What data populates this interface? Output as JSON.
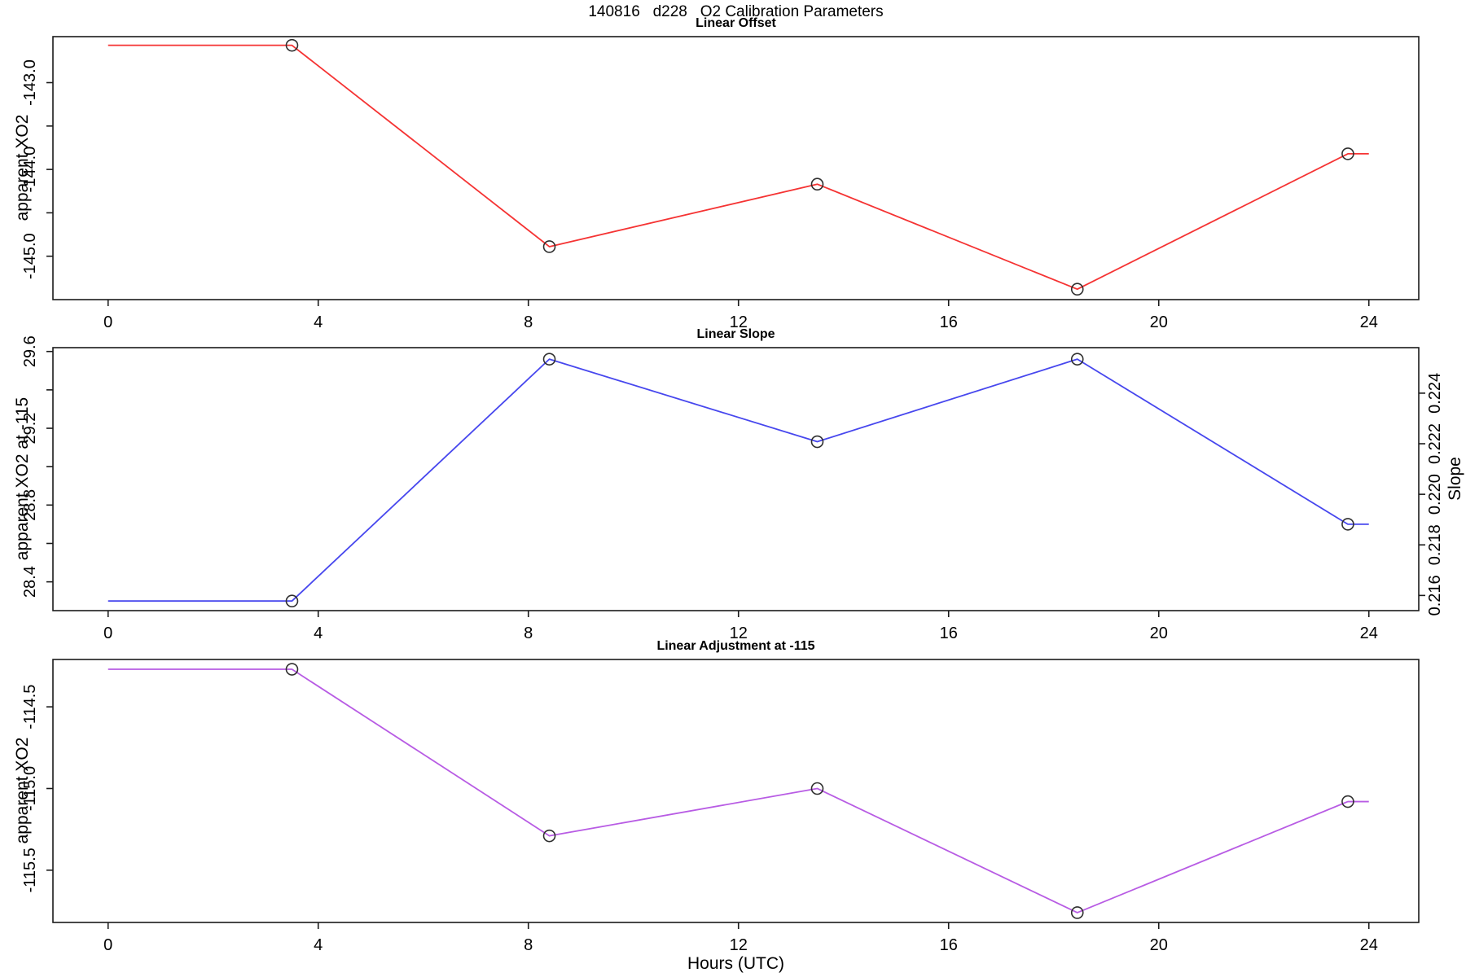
{
  "title": "140816   d228   O2 Calibration Parameters",
  "x_axis": {
    "label": "Hours (UTC)",
    "lim": [
      -1.05,
      24.95
    ],
    "ticks": [
      {
        "v": 0,
        "label": "0"
      },
      {
        "v": 4,
        "label": "4"
      },
      {
        "v": 8,
        "label": "8"
      },
      {
        "v": 12,
        "label": "12"
      },
      {
        "v": 16,
        "label": "16"
      },
      {
        "v": 20,
        "label": "20"
      },
      {
        "v": 24,
        "label": "24"
      }
    ]
  },
  "marker": {
    "shape": "open-circle",
    "color": "#2f2f2f"
  },
  "axis_color": "#1a1a1a",
  "chart_data": [
    {
      "type": "line",
      "title": "Linear Offset",
      "ylabel": "apparent XO2",
      "color": "#f53333",
      "ylim": [
        -145.5,
        -142.47
      ],
      "yticks": [
        {
          "v": -143.0,
          "label": "-143.0"
        },
        {
          "v": -143.5,
          "label": ""
        },
        {
          "v": -144.0,
          "label": "-144.0"
        },
        {
          "v": -144.5,
          "label": ""
        },
        {
          "v": -145.0,
          "label": "-145.0"
        }
      ],
      "line": {
        "x": [
          0,
          3.5,
          8.4,
          13.5,
          18.45,
          23.6,
          24
        ],
        "y": [
          -142.57,
          -142.57,
          -144.89,
          -144.17,
          -145.38,
          -143.82,
          -143.82
        ]
      },
      "points": {
        "x": [
          3.5,
          8.4,
          13.5,
          18.45,
          23.6
        ],
        "y": [
          -142.57,
          -144.89,
          -144.17,
          -145.38,
          -143.82
        ]
      }
    },
    {
      "type": "line",
      "title": "Linear Slope",
      "ylabel": "apparent XO2 at -115",
      "color": "#4747ee",
      "ylim": [
        28.25,
        29.62
      ],
      "yticks": [
        {
          "v": 29.6,
          "label": "29.6"
        },
        {
          "v": 29.4,
          "label": ""
        },
        {
          "v": 29.2,
          "label": "29.2"
        },
        {
          "v": 29.0,
          "label": ""
        },
        {
          "v": 28.8,
          "label": "28.8"
        },
        {
          "v": 28.6,
          "label": ""
        },
        {
          "v": 28.4,
          "label": "28.4"
        }
      ],
      "right_axis": {
        "label": "Slope",
        "lim": [
          0.2154,
          0.2258
        ],
        "ticks": [
          {
            "v": 0.216,
            "label": "0.216"
          },
          {
            "v": 0.218,
            "label": "0.218"
          },
          {
            "v": 0.22,
            "label": "0.220"
          },
          {
            "v": 0.222,
            "label": "0.222"
          },
          {
            "v": 0.224,
            "label": "0.224"
          }
        ]
      },
      "line": {
        "x": [
          0,
          3.5,
          8.4,
          13.5,
          18.45,
          23.6,
          24
        ],
        "y": [
          28.3,
          28.3,
          29.56,
          29.13,
          29.56,
          28.7,
          28.7
        ]
      },
      "points": {
        "x": [
          3.5,
          8.4,
          13.5,
          18.45,
          23.6
        ],
        "y": [
          28.3,
          29.56,
          29.13,
          29.56,
          28.7
        ]
      }
    },
    {
      "type": "line",
      "title": "Linear Adjustment at -115",
      "ylabel": "apparent XO2",
      "color": "#b85ce4",
      "ylim": [
        -115.82,
        -114.21
      ],
      "yticks": [
        {
          "v": -114.5,
          "label": "-114.5"
        },
        {
          "v": -115.0,
          "label": "-115.0"
        },
        {
          "v": -115.5,
          "label": "-115.5"
        }
      ],
      "line": {
        "x": [
          0,
          3.5,
          8.4,
          13.5,
          18.45,
          23.6,
          24
        ],
        "y": [
          -114.27,
          -114.27,
          -115.29,
          -115.0,
          -115.76,
          -115.08,
          -115.08
        ]
      },
      "points": {
        "x": [
          3.5,
          8.4,
          13.5,
          18.45,
          23.6
        ],
        "y": [
          -114.27,
          -115.29,
          -115.0,
          -115.76,
          -115.08
        ]
      }
    }
  ]
}
